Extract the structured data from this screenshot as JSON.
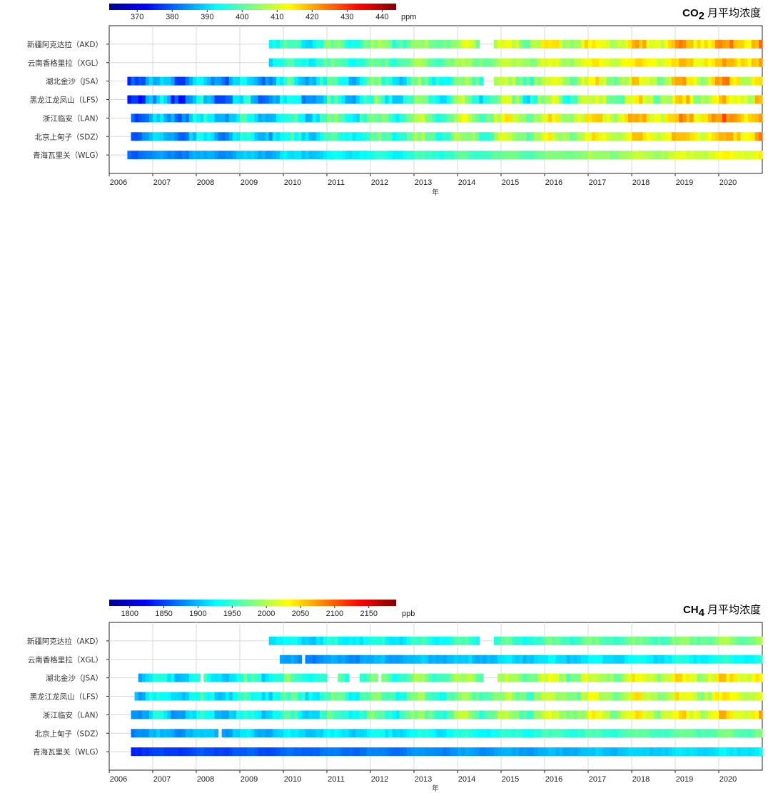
{
  "chart_data": [
    {
      "type": "heatmap",
      "title": "CO",
      "title_subscript": "2",
      "title_suffix": "月平均浓度",
      "xlabel": "年",
      "xlim": [
        "2006-01",
        "2021-01"
      ],
      "x_ticks": [
        "2006",
        "2007",
        "2008",
        "2009",
        "2010",
        "2011",
        "2012",
        "2013",
        "2014",
        "2015",
        "2016",
        "2017",
        "2018",
        "2019",
        "2020"
      ],
      "colorbar": {
        "colormap": "jet",
        "range": [
          362,
          444
        ],
        "ticks": [
          370,
          380,
          390,
          400,
          410,
          420,
          430,
          440
        ],
        "unit": "ppm"
      },
      "grid": true,
      "stations": [
        {
          "label": "新疆阿克达拉（AKD）",
          "start": "2009-09",
          "end": "2020-12",
          "gaps": [
            [
              "2014-07",
              "2014-11"
            ]
          ],
          "base": 386.5,
          "slope": 2.3,
          "amp": 5.0
        },
        {
          "label": "云南香格里拉（XGL）",
          "start": "2009-09",
          "end": "2020-12",
          "gaps": [],
          "base": 386.0,
          "slope": 2.2,
          "amp": 3.5
        },
        {
          "label": "湖北金沙（JSA）",
          "start": "2006-06",
          "end": "2020-12",
          "gaps": [
            [
              "2014-08",
              "2014-11"
            ]
          ],
          "base": 381.0,
          "slope": 2.4,
          "amp": 6.5
        },
        {
          "label": "黑龙江龙凤山（LFS）",
          "start": "2006-06",
          "end": "2020-12",
          "gaps": [],
          "base": 379.0,
          "slope": 2.4,
          "amp": 8.0
        },
        {
          "label": "浙江临安（LAN）",
          "start": "2006-07",
          "end": "2020-12",
          "gaps": [],
          "base": 383.0,
          "slope": 2.6,
          "amp": 5.5
        },
        {
          "label": "北京上甸子（SDZ）",
          "start": "2006-07",
          "end": "2020-12",
          "gaps": [],
          "base": 382.0,
          "slope": 2.5,
          "amp": 5.0
        },
        {
          "label": "青海瓦里关（WLG）",
          "start": "2006-06",
          "end": "2020-12",
          "gaps": [],
          "base": 380.5,
          "slope": 2.15,
          "amp": 2.0
        }
      ]
    },
    {
      "type": "heatmap",
      "title": "CH",
      "title_subscript": "4",
      "title_suffix": "月平均浓度",
      "xlabel": "年",
      "xlim": [
        "2006-01",
        "2021-01"
      ],
      "x_ticks": [
        "2006",
        "2007",
        "2008",
        "2009",
        "2010",
        "2011",
        "2012",
        "2013",
        "2014",
        "2015",
        "2016",
        "2017",
        "2018",
        "2019",
        "2020"
      ],
      "colorbar": {
        "colormap": "jet",
        "range": [
          1770,
          2190
        ],
        "ticks": [
          1800,
          1850,
          1900,
          1950,
          2000,
          2050,
          2100,
          2150
        ],
        "unit": "ppb"
      },
      "grid": true,
      "stations": [
        {
          "label": "新疆阿克达拉（AKD）",
          "start": "2009-09",
          "end": "2020-12",
          "gaps": [
            [
              "2014-07",
              "2014-11"
            ]
          ],
          "base": 1895,
          "slope": 6,
          "amp": 15
        },
        {
          "label": "云南香格里拉（XGL）",
          "start": "2009-12",
          "end": "2020-12",
          "gaps": [
            [
              "2010-06",
              "2010-07"
            ]
          ],
          "base": 1862,
          "slope": 5,
          "amp": 10
        },
        {
          "label": "湖北金沙（JSA）",
          "start": "2006-09",
          "end": "2020-12",
          "gaps": [
            [
              "2008-02",
              "2008-03"
            ],
            [
              "2011-01",
              "2011-04"
            ],
            [
              "2011-07",
              "2011-10"
            ],
            [
              "2012-03",
              "2012-04"
            ],
            [
              "2014-08",
              "2014-12"
            ]
          ],
          "base": 1912,
          "slope": 8,
          "amp": 25
        },
        {
          "label": "黑龙江龙凤山（LFS）",
          "start": "2006-08",
          "end": "2020-12",
          "gaps": [],
          "base": 1908,
          "slope": 8,
          "amp": 25
        },
        {
          "label": "浙江临安（LAN）",
          "start": "2006-07",
          "end": "2020-12",
          "gaps": [],
          "base": 1892,
          "slope": 10,
          "amp": 25
        },
        {
          "label": "北京上甸子（SDZ）",
          "start": "2006-07",
          "end": "2020-12",
          "gaps": [
            [
              "2008-07",
              "2008-08"
            ]
          ],
          "base": 1885,
          "slope": 6,
          "amp": 12
        },
        {
          "label": "青海瓦里关（WLG）",
          "start": "2006-07",
          "end": "2020-12",
          "gaps": [],
          "base": 1840,
          "slope": 5.5,
          "amp": 6
        }
      ]
    }
  ]
}
